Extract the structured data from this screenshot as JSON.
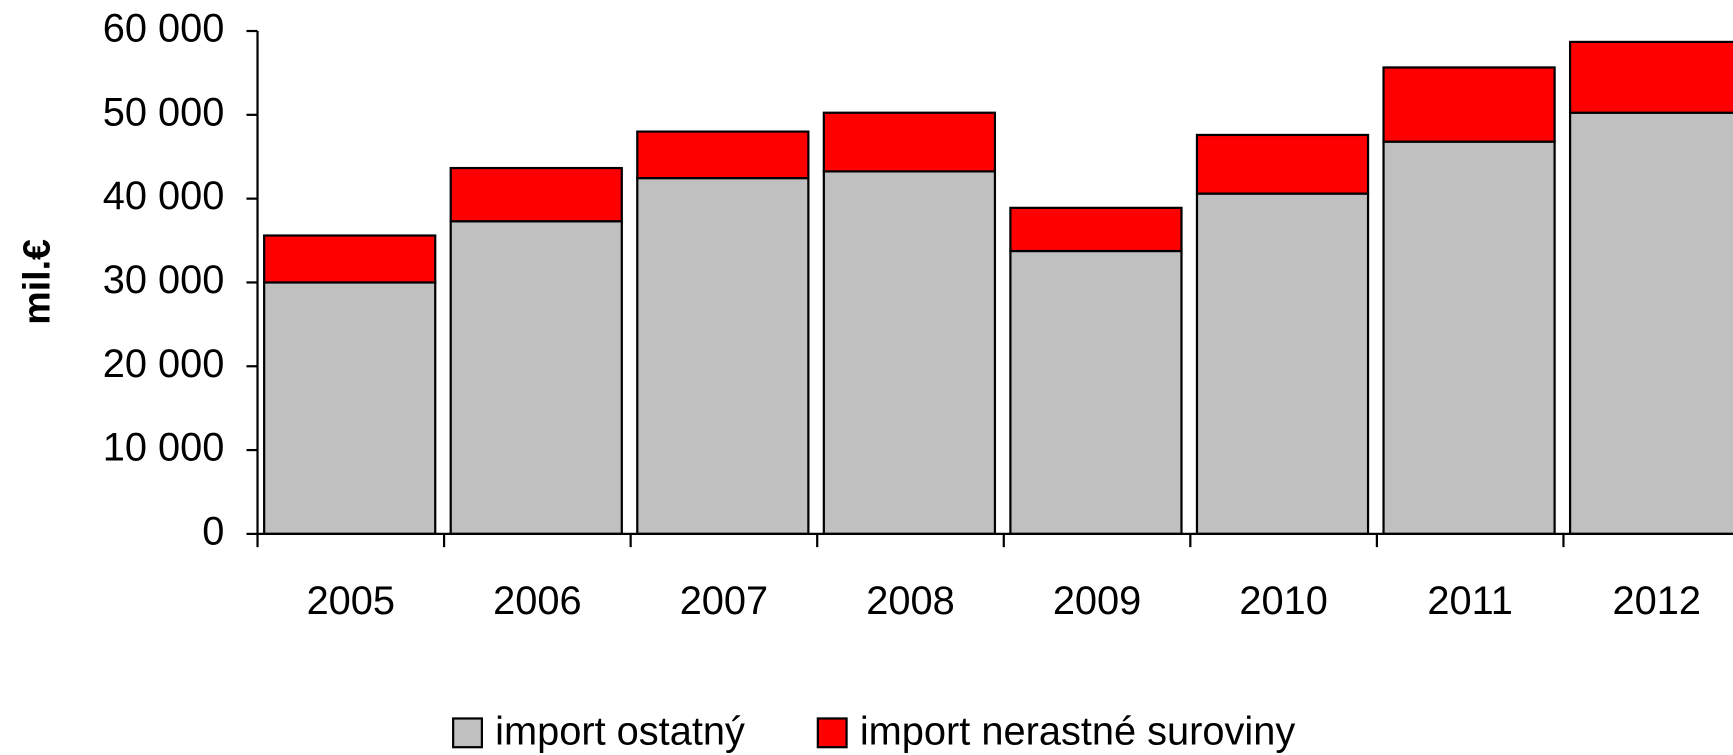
{
  "chart_data": {
    "type": "stacked_bar",
    "y_label": "mil.€",
    "categories": [
      "2005",
      "2006",
      "2007",
      "2008",
      "2009",
      "2010",
      "2011",
      "2012"
    ],
    "series": [
      {
        "name": "import ostatný",
        "color": "#c0c0c0",
        "values": [
          30000,
          37300,
          42450,
          43250,
          33750,
          40600,
          46800,
          50250
        ]
      },
      {
        "name": "import nerastné suroviny",
        "color": "#ff0000",
        "values": [
          5600,
          6350,
          5550,
          7000,
          5150,
          7000,
          8850,
          8450
        ]
      }
    ],
    "ylim": [
      0,
      60000
    ],
    "yticks": [
      0,
      {
        "value": 10000,
        "label": "10 000"
      },
      {
        "value": 20000,
        "label": "20 000"
      },
      {
        "value": 30000,
        "label": "30 000"
      },
      {
        "value": 40000,
        "label": "40 000"
      },
      {
        "value": 50000,
        "label": "50 000"
      },
      {
        "value": 60000,
        "label": "60 000"
      }
    ],
    "legend": "bottom"
  }
}
